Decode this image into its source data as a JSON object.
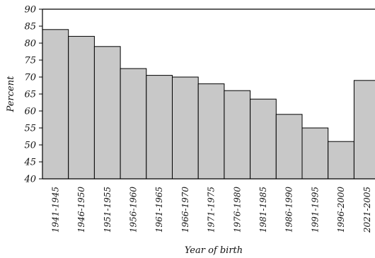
{
  "chart_data": {
    "type": "bar",
    "categories": [
      "1941-1945",
      "1946-1950",
      "1951-1955",
      "1956-1960",
      "1961-1965",
      "1966-1970",
      "1971-1975",
      "1976-1980",
      "1981-1985",
      "1986-1990",
      "1991-1995",
      "1996-2000",
      "2021-2005"
    ],
    "values": [
      84,
      82,
      79,
      72.5,
      70.5,
      70,
      68,
      66,
      63.5,
      59,
      55,
      51,
      69
    ],
    "xlabel": "Year of birth",
    "ylabel": "Percent",
    "ylim": [
      40,
      90
    ],
    "yticks": [
      40,
      45,
      50,
      55,
      60,
      65,
      70,
      75,
      80,
      85,
      90
    ],
    "grid": false,
    "colors": {
      "bar_fill": "#c8c8c8",
      "bar_stroke": "#000000",
      "axis": "#000000"
    }
  }
}
